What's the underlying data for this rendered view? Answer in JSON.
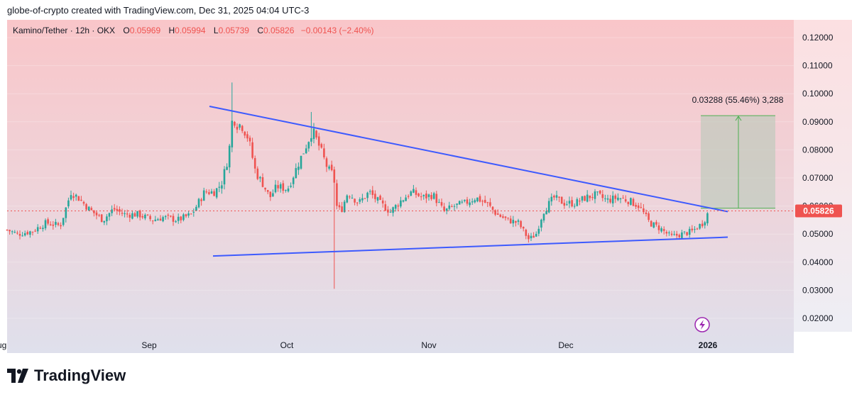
{
  "header": {
    "byline": "globe-of-crypto created with TradingView.com, Dec 31, 2025 04:04 UTC-3"
  },
  "legend": {
    "symbol": "Kamino/Tether · 12h · OKX",
    "open_label": "O",
    "open": "0.05969",
    "high_label": "H",
    "high": "0.05994",
    "low_label": "L",
    "low": "0.05739",
    "close_label": "C",
    "close": "0.05826",
    "change": "−0.00143 (−2.40%)"
  },
  "chart_data": {
    "type": "candlestick",
    "timeframe": "12h",
    "price_axis": {
      "ticks": [
        "0.12000",
        "0.11000",
        "0.10000",
        "0.09000",
        "0.08000",
        "0.07000",
        "0.06000",
        "0.05000",
        "0.04000",
        "0.03000",
        "0.02000"
      ],
      "range": [
        0.0,
        0.12
      ]
    },
    "time_axis": {
      "labels": [
        "ug",
        "Sep",
        "Oct",
        "Nov",
        "Dec",
        "2026"
      ]
    },
    "last_price": "0.05826",
    "last_price_color": "#ef5350",
    "up_color": "#26a69a",
    "down_color": "#ef5350",
    "candles_close_path": [
      [
        0,
        0.0515
      ],
      [
        15,
        0.05
      ],
      [
        35,
        0.051
      ],
      [
        55,
        0.054
      ],
      [
        75,
        0.053
      ],
      [
        90,
        0.065
      ],
      [
        100,
        0.063
      ],
      [
        115,
        0.059
      ],
      [
        135,
        0.055
      ],
      [
        150,
        0.059
      ],
      [
        165,
        0.057
      ],
      [
        185,
        0.057
      ],
      [
        205,
        0.055
      ],
      [
        220,
        0.056
      ],
      [
        240,
        0.055
      ],
      [
        260,
        0.057
      ],
      [
        278,
        0.065
      ],
      [
        292,
        0.065
      ],
      [
        302,
        0.068
      ],
      [
        312,
        0.078
      ],
      [
        318,
        0.093
      ],
      [
        322,
        0.089
      ],
      [
        330,
        0.089
      ],
      [
        340,
        0.084
      ],
      [
        350,
        0.072
      ],
      [
        360,
        0.068
      ],
      [
        370,
        0.063
      ],
      [
        380,
        0.067
      ],
      [
        395,
        0.066
      ],
      [
        410,
        0.075
      ],
      [
        422,
        0.082
      ],
      [
        430,
        0.087
      ],
      [
        440,
        0.081
      ],
      [
        452,
        0.073
      ],
      [
        460,
        0.071
      ],
      [
        464,
        0.06
      ],
      [
        470,
        0.058
      ],
      [
        480,
        0.065
      ],
      [
        495,
        0.061
      ],
      [
        510,
        0.065
      ],
      [
        525,
        0.061
      ],
      [
        540,
        0.058
      ],
      [
        555,
        0.062
      ],
      [
        570,
        0.065
      ],
      [
        585,
        0.063
      ],
      [
        600,
        0.064
      ],
      [
        615,
        0.058
      ],
      [
        630,
        0.06
      ],
      [
        645,
        0.061
      ],
      [
        660,
        0.063
      ],
      [
        675,
        0.061
      ],
      [
        690,
        0.057
      ],
      [
        705,
        0.055
      ],
      [
        720,
        0.054
      ],
      [
        735,
        0.048
      ],
      [
        745,
        0.05
      ],
      [
        755,
        0.058
      ],
      [
        770,
        0.063
      ],
      [
        785,
        0.061
      ],
      [
        800,
        0.061
      ],
      [
        815,
        0.063
      ],
      [
        830,
        0.064
      ],
      [
        845,
        0.062
      ],
      [
        860,
        0.063
      ],
      [
        875,
        0.062
      ],
      [
        890,
        0.06
      ],
      [
        905,
        0.054
      ],
      [
        920,
        0.052
      ],
      [
        935,
        0.049
      ],
      [
        950,
        0.05
      ],
      [
        965,
        0.051
      ],
      [
        980,
        0.054
      ],
      [
        988,
        0.058
      ]
    ],
    "wick_extremes": [
      {
        "label": "Sep high",
        "value": 0.104
      },
      {
        "label": "Oct high",
        "value": 0.0935
      },
      {
        "label": "Oct low",
        "value": 0.0305
      }
    ],
    "drawings": {
      "descending_trendline": {
        "from": [
          285,
          0.0955
        ],
        "to": [
          1015,
          0.058
        ],
        "color": "#3d5afe"
      },
      "ascending_trendline": {
        "from": [
          290,
          0.0422
        ],
        "to": [
          1015,
          0.0489
        ],
        "color": "#3d5afe"
      },
      "price_range_measure": {
        "from_price": 0.0592,
        "to_price": 0.0922,
        "label": "0.03288 (55.46%) 3,288"
      }
    }
  },
  "bottom": {
    "logo_text": "TradingView"
  }
}
